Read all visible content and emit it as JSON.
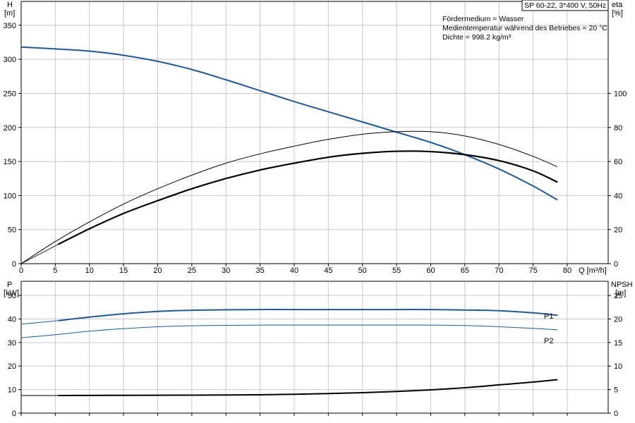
{
  "colors": {
    "blue": "#1f5a96",
    "black": "#000000",
    "grid": "#c8c8c8",
    "axis": "#000000"
  },
  "chart_data": [
    {
      "type": "line",
      "id": "head-efficiency",
      "ylabel_left": [
        "H",
        "[m]"
      ],
      "ylabel_right": [
        "eta",
        "[%]"
      ],
      "xlabel": "Q [m³/h]",
      "box_title": "SP 60-22, 3*400 V, 50Hz",
      "annotations": [
        "Fördermedium = Wasser",
        "Medientemperatur während des Betriebes = 20 °C",
        "Dichte = 998.2 kg/m³"
      ],
      "xlim": [
        0,
        86
      ],
      "x_ticks": [
        0,
        5,
        10,
        15,
        20,
        25,
        30,
        35,
        40,
        45,
        50,
        55,
        60,
        65,
        70,
        75,
        80
      ],
      "ylim_left": [
        0,
        385
      ],
      "y_ticks_left": [
        0,
        50,
        100,
        150,
        200,
        250,
        300,
        350
      ],
      "ylim_right": [
        0,
        154
      ],
      "y_ticks_right": [
        0,
        20,
        40,
        60,
        80,
        100
      ],
      "grid": true,
      "series": [
        {
          "axis": "left",
          "color": "blue",
          "width": 2.0,
          "x": [
            0,
            5.5,
            10,
            15,
            20,
            25,
            30,
            35,
            40,
            45,
            50,
            55,
            60,
            65,
            70,
            75,
            78.5
          ],
          "y": [
            318,
            315,
            312,
            306,
            297,
            285,
            270,
            254,
            238,
            223,
            208,
            193,
            178,
            160,
            139,
            114,
            94
          ]
        },
        {
          "axis": "right",
          "color": "black",
          "width": 2.2,
          "x": [
            5.5,
            10,
            15,
            20,
            25,
            30,
            35,
            40,
            45,
            50,
            55,
            60,
            65,
            70,
            75,
            78.5
          ],
          "y": [
            11.5,
            20.5,
            29.5,
            37,
            44,
            50,
            55,
            59,
            62.5,
            64.8,
            66,
            65.8,
            64,
            60.5,
            54.5,
            48
          ]
        },
        {
          "axis": "right",
          "color": "black",
          "width": 1.0,
          "x": [
            0,
            5,
            10,
            15,
            20,
            25,
            30,
            35,
            40,
            45,
            50,
            55,
            60,
            65,
            70,
            75,
            78.5
          ],
          "y": [
            0,
            13,
            24.5,
            35,
            44,
            52,
            59,
            64.5,
            69,
            73,
            76,
            77.5,
            77.5,
            75,
            70,
            63,
            57
          ]
        },
        {
          "axis": "right",
          "color": "black",
          "width": 0.8,
          "x": [
            0,
            5.5
          ],
          "y": [
            0,
            11.5
          ]
        }
      ]
    },
    {
      "type": "line",
      "id": "power-npsh",
      "ylabel_left": [
        "P",
        "[kW]"
      ],
      "ylabel_right": [
        "NPSH",
        "[m]"
      ],
      "xlim": [
        0,
        86
      ],
      "x_ticks": [
        0,
        5,
        10,
        15,
        20,
        25,
        30,
        35,
        40,
        45,
        50,
        55,
        60,
        65,
        70,
        75,
        80
      ],
      "ylim_left": [
        0,
        56
      ],
      "y_ticks_left": [
        0,
        10,
        20,
        30,
        40,
        50
      ],
      "ylim_right": [
        0,
        28
      ],
      "y_ticks_right": [
        0,
        5,
        10,
        15,
        20,
        25
      ],
      "grid": true,
      "series": [
        {
          "name": "P1",
          "axis": "left",
          "color": "blue",
          "width": 2.0,
          "x": [
            5.5,
            10,
            15,
            20,
            25,
            30,
            35,
            40,
            45,
            50,
            55,
            60,
            65,
            70,
            75,
            78.5
          ],
          "y": [
            39.3,
            40.8,
            42.2,
            43.2,
            43.7,
            43.9,
            44.0,
            44.0,
            44.0,
            44.0,
            44.0,
            44.0,
            43.8,
            43.5,
            42.6,
            41.6
          ]
        },
        {
          "name": "",
          "axis": "left",
          "color": "blue",
          "width": 1.0,
          "x": [
            0,
            5.5
          ],
          "y": [
            37.8,
            39.3
          ]
        },
        {
          "name": "P2",
          "axis": "left",
          "color": "blue",
          "width": 1.0,
          "x": [
            0,
            5,
            10,
            15,
            20,
            25,
            30,
            35,
            40,
            45,
            50,
            55,
            60,
            65,
            70,
            75,
            78.5
          ],
          "y": [
            32,
            33.3,
            34.8,
            35.9,
            36.7,
            37.1,
            37.3,
            37.4,
            37.4,
            37.4,
            37.4,
            37.4,
            37.4,
            37.2,
            36.7,
            36.0,
            35.4
          ]
        },
        {
          "name": "",
          "axis": "right",
          "color": "black",
          "width": 2.0,
          "x": [
            5.5,
            10,
            15,
            20,
            25,
            30,
            35,
            40,
            45,
            50,
            55,
            60,
            65,
            70,
            75,
            78.5
          ],
          "y": [
            3.75,
            3.76,
            3.78,
            3.8,
            3.82,
            3.85,
            3.9,
            4.0,
            4.15,
            4.35,
            4.6,
            4.95,
            5.4,
            6.0,
            6.6,
            7.1
          ]
        },
        {
          "name": "",
          "axis": "right",
          "color": "black",
          "width": 1.0,
          "x": [
            0,
            5.5
          ],
          "y": [
            3.75,
            3.75
          ]
        }
      ]
    }
  ]
}
